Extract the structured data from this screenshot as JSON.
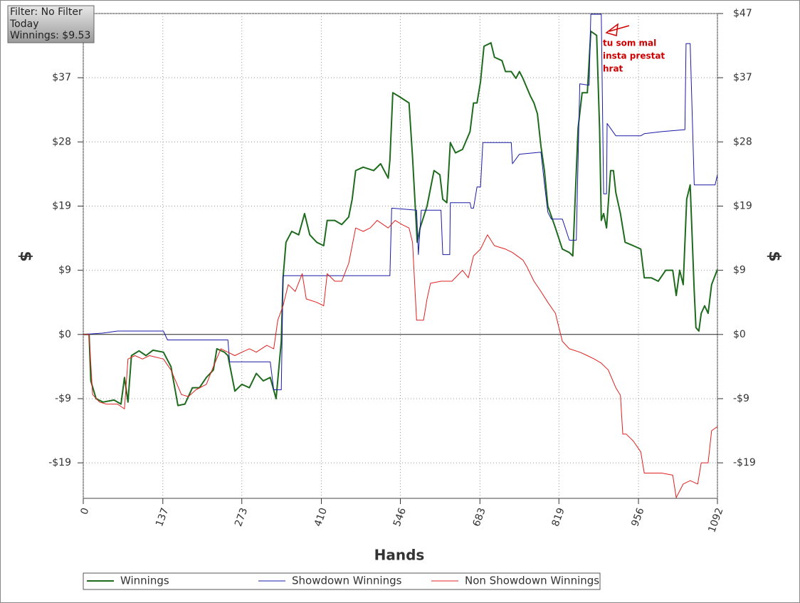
{
  "chart_data": {
    "type": "line",
    "info": [
      "Filter: No Filter",
      "Today",
      "Winnings: $9.53"
    ],
    "x_label": "Hands",
    "y_label": "$",
    "annotation": [
      "tu som mal",
      "insta prestat",
      "hrat"
    ],
    "xlim": [
      0,
      1092
    ],
    "xticks": [
      0,
      137,
      273,
      410,
      546,
      683,
      819,
      956,
      1092
    ],
    "ylim": [
      -24,
      47
    ],
    "yticks": [
      {
        "value": -18.8,
        "label": "-$19"
      },
      {
        "value": -9.4,
        "label": "-$9"
      },
      {
        "value": 0,
        "label": "$0"
      },
      {
        "value": 9.4,
        "label": "$9"
      },
      {
        "value": 18.8,
        "label": "$19"
      },
      {
        "value": 28.2,
        "label": "$28"
      },
      {
        "value": 37.6,
        "label": "$37"
      },
      {
        "value": 47,
        "label": "$47"
      }
    ],
    "grid": true,
    "series": [
      {
        "name": "Winnings",
        "color": "#1e6b1e",
        "x": [
          0,
          10,
          13,
          22,
          34,
          53,
          65,
          71,
          77,
          83,
          96,
          108,
          120,
          138,
          151,
          163,
          175,
          188,
          200,
          212,
          224,
          230,
          243,
          249,
          261,
          273,
          286,
          298,
          310,
          322,
          332,
          341,
          344,
          349,
          359,
          371,
          381,
          390,
          402,
          414,
          420,
          433,
          445,
          457,
          463,
          469,
          482,
          500,
          512,
          525,
          528,
          533,
          543,
          561,
          567,
          575,
          580,
          592,
          598,
          604,
          614,
          619,
          626,
          632,
          641,
          653,
          666,
          672,
          678,
          684,
          690,
          702,
          708,
          721,
          727,
          737,
          745,
          751,
          757,
          770,
          776,
          782,
          788,
          794,
          800,
          813,
          825,
          837,
          843,
          847,
          852,
          859,
          868,
          874,
          884,
          889,
          892,
          896,
          901,
          908,
          913,
          917,
          925,
          933,
          947,
          960,
          966,
          978,
          990,
          1003,
          1015,
          1021,
          1027,
          1033,
          1039,
          1045,
          1052,
          1055,
          1060,
          1064,
          1070,
          1076,
          1082,
          1092
        ],
        "values": [
          0,
          0,
          -6.8,
          -9.4,
          -9.9,
          -9.6,
          -10.2,
          -6.3,
          -9.9,
          -3.1,
          -2.4,
          -3.1,
          -2.3,
          -2.6,
          -4.7,
          -10.4,
          -10.2,
          -7.8,
          -7.8,
          -6.3,
          -5.2,
          -2.1,
          -2.6,
          -3.1,
          -8.3,
          -7.3,
          -7.8,
          -5.7,
          -6.8,
          -6.3,
          -9.4,
          -1.0,
          8.3,
          13.5,
          15.1,
          14.6,
          17.7,
          14.6,
          13.5,
          13.0,
          16.7,
          16.7,
          16.1,
          17.2,
          19.8,
          24.0,
          24.5,
          24.0,
          25.0,
          22.9,
          25.5,
          35.4,
          34.9,
          33.9,
          26.0,
          13.5,
          15.6,
          18.8,
          21.4,
          24.0,
          23.4,
          19.8,
          19.3,
          28.1,
          26.6,
          27.1,
          29.7,
          33.9,
          33.9,
          37.0,
          42.2,
          42.7,
          40.6,
          40.1,
          38.5,
          38.5,
          37.5,
          38.5,
          37.5,
          34.9,
          33.9,
          32.3,
          27.6,
          24.0,
          18.8,
          15.6,
          12.5,
          12.0,
          11.5,
          19.8,
          30.2,
          35.4,
          35.4,
          44.4,
          43.8,
          30.2,
          16.7,
          17.7,
          15.6,
          24.0,
          24.0,
          20.8,
          17.7,
          13.5,
          13.0,
          12.5,
          8.3,
          8.3,
          7.8,
          9.4,
          9.4,
          5.7,
          9.4,
          7.3,
          19.8,
          21.9,
          6.3,
          1.0,
          0.5,
          3.1,
          4.2,
          3.1,
          7.3,
          9.53
        ]
      },
      {
        "name": "Showdown Winnings",
        "color": "#1a1aa8",
        "x": [
          0,
          34,
          59,
          138,
          145,
          249,
          252,
          322,
          328,
          341,
          344,
          528,
          531,
          574,
          577,
          582,
          616,
          619,
          631,
          632,
          666,
          668,
          672,
          678,
          684,
          688,
          737,
          739,
          751,
          788,
          794,
          800,
          806,
          825,
          837,
          849,
          855,
          871,
          874,
          892,
          896,
          901,
          902,
          917,
          960,
          966,
          996,
          1036,
          1038,
          1045,
          1052,
          1088,
          1092
        ],
        "values": [
          0,
          0.2,
          0.5,
          0.5,
          -0.8,
          -0.8,
          -4.0,
          -4.0,
          -8.1,
          -8.1,
          8.6,
          8.6,
          18.5,
          18.2,
          11.7,
          18.2,
          18.2,
          11.7,
          11.7,
          19.3,
          19.3,
          18.5,
          18.5,
          21.6,
          21.6,
          28.1,
          28.1,
          25.0,
          26.4,
          26.7,
          22.1,
          17.9,
          16.9,
          16.9,
          13.8,
          13.8,
          36.7,
          36.5,
          46.9,
          46.9,
          20.6,
          20.6,
          30.9,
          29.1,
          29.1,
          29.4,
          29.7,
          30.0,
          42.6,
          42.6,
          21.9,
          21.9,
          23.4
        ]
      },
      {
        "name": "Non Showdown Winnings",
        "color": "#e02020",
        "x": [
          0,
          10,
          16,
          28,
          40,
          59,
          71,
          77,
          89,
          102,
          114,
          138,
          151,
          169,
          181,
          194,
          212,
          224,
          237,
          249,
          261,
          273,
          286,
          298,
          316,
          328,
          335,
          344,
          353,
          365,
          377,
          384,
          402,
          414,
          420,
          433,
          445,
          457,
          469,
          482,
          494,
          506,
          525,
          537,
          549,
          561,
          567,
          574,
          586,
          592,
          598,
          616,
          635,
          653,
          663,
          672,
          684,
          696,
          708,
          727,
          739,
          757,
          764,
          776,
          788,
          800,
          813,
          819,
          825,
          837,
          855,
          868,
          880,
          892,
          904,
          917,
          925,
          929,
          935,
          947,
          960,
          966,
          978,
          996,
          1015,
          1021,
          1033,
          1045,
          1058,
          1064,
          1076,
          1082,
          1092
        ],
        "values": [
          0,
          0,
          -8.8,
          -9.9,
          -10.2,
          -10.2,
          -10.9,
          -3.6,
          -3.1,
          -3.6,
          -3.1,
          -3.6,
          -5.2,
          -8.8,
          -9.1,
          -8.1,
          -7.3,
          -4.7,
          -2.1,
          -2.6,
          -3.1,
          -2.6,
          -2.1,
          -2.6,
          -1.6,
          -2.1,
          2.1,
          4.2,
          7.3,
          6.3,
          8.9,
          5.2,
          4.7,
          4.2,
          8.9,
          7.8,
          7.8,
          10.4,
          15.6,
          15.1,
          15.6,
          16.7,
          15.6,
          16.7,
          16.1,
          15.6,
          13.5,
          2.1,
          2.1,
          5.2,
          7.5,
          7.8,
          7.8,
          9.4,
          8.3,
          11.5,
          12.5,
          14.6,
          13.0,
          12.5,
          12.0,
          10.9,
          9.9,
          7.8,
          6.3,
          4.7,
          3.1,
          1.0,
          -1.0,
          -2.1,
          -2.6,
          -3.1,
          -3.6,
          -4.2,
          -5.2,
          -7.8,
          -8.9,
          -14.6,
          -14.6,
          -15.6,
          -17.2,
          -20.3,
          -20.3,
          -20.3,
          -20.6,
          -23.9,
          -21.9,
          -21.4,
          -21.9,
          -18.8,
          -18.8,
          -14.1,
          -13.5
        ]
      }
    ]
  }
}
